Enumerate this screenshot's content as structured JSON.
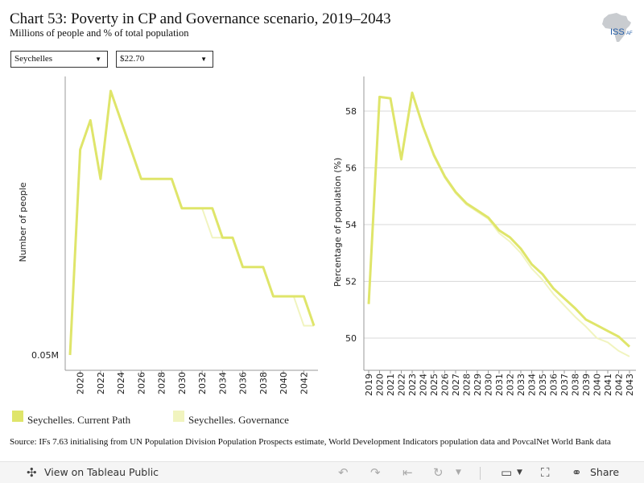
{
  "header": {
    "title": "Chart 53: Poverty in CP and Governance scenario, 2019–2043",
    "subtitle": "Millions of people and % of total population"
  },
  "logo": {
    "text": "ISS",
    "suffix": "AF"
  },
  "filters": {
    "country": "Seychelles",
    "threshold": "$22.70"
  },
  "legend": {
    "current_path": "Seychelles. Current Path",
    "governance": "Seychelles. Governance"
  },
  "colors": {
    "current_path": "#dfe56a",
    "governance": "#f1f4bf",
    "grid": "#d9d9d9",
    "axis": "#999999"
  },
  "source": "Source: IFs 7.63 initialising from UN Population Division Population Prospects estimate, World Development Indicators population data and PovcalNet World Bank data",
  "toolbar": {
    "view_label": "View on Tableau Public",
    "share_label": "Share"
  },
  "chart_data": [
    {
      "type": "line",
      "title": "",
      "ylabel": "Number of people",
      "xlabel": "",
      "x_tick_labels": [
        "2020",
        "2022",
        "2024",
        "2026",
        "2028",
        "2030",
        "2032",
        "2034",
        "2036",
        "2038",
        "2040",
        "2042"
      ],
      "y_tick_labels": [
        "0.05M"
      ],
      "y_tick_values": [
        0.05
      ],
      "ylim": [
        0.05,
        0.059
      ],
      "x": [
        2019,
        2020,
        2021,
        2022,
        2023,
        2024,
        2025,
        2026,
        2027,
        2028,
        2029,
        2030,
        2031,
        2032,
        2033,
        2034,
        2035,
        2036,
        2037,
        2038,
        2039,
        2040,
        2041,
        2042,
        2043
      ],
      "grid": false,
      "series": [
        {
          "name": "Seychelles. Current Path",
          "values": [
            0.05,
            0.057,
            0.058,
            0.056,
            0.059,
            0.058,
            0.057,
            0.056,
            0.056,
            0.056,
            0.056,
            0.055,
            0.055,
            0.055,
            0.055,
            0.054,
            0.054,
            0.053,
            0.053,
            0.053,
            0.052,
            0.052,
            0.052,
            0.052,
            0.051
          ]
        },
        {
          "name": "Seychelles. Governance",
          "values": [
            0.05,
            0.057,
            0.058,
            0.056,
            0.059,
            0.058,
            0.057,
            0.056,
            0.056,
            0.056,
            0.056,
            0.055,
            0.055,
            0.055,
            0.054,
            0.054,
            0.054,
            0.053,
            0.053,
            0.053,
            0.052,
            0.052,
            0.052,
            0.051,
            0.051
          ]
        }
      ]
    },
    {
      "type": "line",
      "title": "",
      "ylabel": "Percentage of population (%)",
      "xlabel": "",
      "x": [
        2019,
        2020,
        2021,
        2022,
        2023,
        2024,
        2025,
        2026,
        2027,
        2028,
        2029,
        2030,
        2031,
        2032,
        2033,
        2034,
        2035,
        2036,
        2037,
        2038,
        2039,
        2040,
        2041,
        2042,
        2043
      ],
      "y_ticks": [
        50,
        52,
        54,
        56,
        58
      ],
      "ylim": [
        49.0,
        59.3
      ],
      "grid": true,
      "series": [
        {
          "name": "Seychelles. Current Path",
          "values": [
            51.2,
            58.5,
            58.45,
            56.3,
            58.65,
            57.45,
            56.45,
            55.7,
            55.15,
            54.75,
            54.5,
            54.25,
            53.8,
            53.55,
            53.15,
            52.6,
            52.25,
            51.75,
            51.4,
            51.05,
            50.65,
            50.45,
            50.25,
            50.05,
            49.7
          ]
        },
        {
          "name": "Seychelles. Governance",
          "values": [
            51.2,
            58.5,
            58.45,
            56.3,
            58.65,
            57.45,
            56.4,
            55.65,
            55.1,
            54.7,
            54.45,
            54.2,
            53.7,
            53.4,
            53.0,
            52.45,
            52.05,
            51.55,
            51.15,
            50.75,
            50.4,
            50.0,
            49.85,
            49.55,
            49.35
          ]
        }
      ]
    }
  ]
}
